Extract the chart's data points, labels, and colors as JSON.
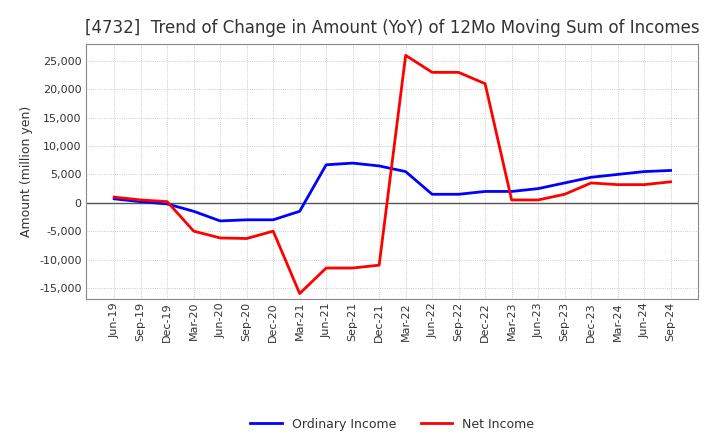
{
  "title": "[4732]  Trend of Change in Amount (YoY) of 12Mo Moving Sum of Incomes",
  "ylabel": "Amount (million yen)",
  "x_labels": [
    "Jun-19",
    "Sep-19",
    "Dec-19",
    "Mar-20",
    "Jun-20",
    "Sep-20",
    "Dec-20",
    "Mar-21",
    "Jun-21",
    "Sep-21",
    "Dec-21",
    "Mar-22",
    "Jun-22",
    "Sep-22",
    "Dec-22",
    "Mar-23",
    "Jun-23",
    "Sep-23",
    "Dec-23",
    "Mar-24",
    "Jun-24",
    "Sep-24"
  ],
  "ordinary_income": [
    700,
    200,
    -200,
    -1500,
    -3200,
    -3000,
    -3000,
    -1500,
    6700,
    7000,
    6500,
    5500,
    1500,
    1500,
    2000,
    2000,
    2500,
    3500,
    4500,
    5000,
    5500,
    5700
  ],
  "net_income": [
    1000,
    500,
    200,
    -5000,
    -6200,
    -6300,
    -5000,
    -16000,
    -11500,
    -11500,
    -11000,
    26000,
    23000,
    23000,
    21000,
    500,
    500,
    1500,
    3500,
    3200,
    3200,
    3700
  ],
  "ylim": [
    -17000,
    28000
  ],
  "yticks": [
    -15000,
    -10000,
    -5000,
    0,
    5000,
    10000,
    15000,
    20000,
    25000
  ],
  "line_color_ordinary": "#0000FF",
  "line_color_net": "#FF0000",
  "background_color": "#FFFFFF",
  "plot_bg_color": "#FFFFFF",
  "grid_color": "#BBBBBB",
  "legend_ordinary": "Ordinary Income",
  "legend_net": "Net Income",
  "title_fontsize": 12,
  "title_color": "#333333",
  "axis_fontsize": 9,
  "tick_fontsize": 8,
  "linewidth": 2.0
}
